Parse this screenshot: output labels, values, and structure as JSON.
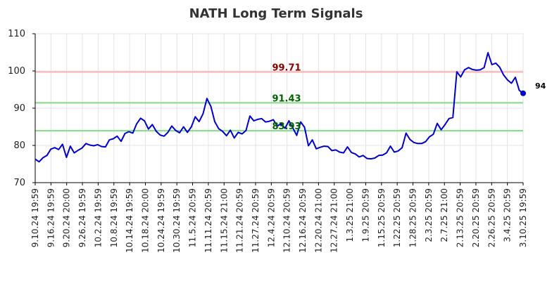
{
  "chart_data": {
    "type": "line",
    "title": "NATH Long Term Signals",
    "xlabel": "",
    "ylabel": "",
    "ylim": [
      70,
      110
    ],
    "yticks": [
      70,
      80,
      90,
      100,
      110
    ],
    "grid": true,
    "xtick_labels": [
      "9.10.24 19:59",
      "9.16.24 19:59",
      "9.20.24 20:00",
      "9.26.24 19:59",
      "10.2.24 19:59",
      "10.8.24 19:59",
      "10.14.24 19:59",
      "10.18.24 20:00",
      "10.24.24 19:59",
      "10.30.24 19:59",
      "11.5.24 20:59",
      "11.11.24 20:59",
      "11.15.24 21:00",
      "11.21.24 20:59",
      "11.27.24 20:59",
      "12.4.24 20:59",
      "12.10.24 20:59",
      "12.16.24 20:59",
      "12.20.24 21:00",
      "12.27.24 21:00",
      "1.3.25 21:00",
      "1.9.25 20:59",
      "1.15.25 20:59",
      "1.22.25 20:59",
      "1.28.25 20:59",
      "2.3.25 20:59",
      "2.7.25 21:00",
      "2.13.25 20:59",
      "2.20.25 20:59",
      "2.26.25 20:59",
      "3.4.25 20:59",
      "3.10.25 19:59"
    ],
    "series": [
      {
        "color": "#0000cc",
        "values": [
          76.3,
          75.6,
          76.7,
          77.3,
          79.0,
          79.4,
          78.9,
          80.3,
          76.8,
          79.8,
          78.0,
          78.7,
          79.3,
          80.5,
          80.1,
          79.9,
          80.2,
          79.7,
          79.6,
          81.5,
          81.8,
          82.5,
          81.1,
          83.2,
          83.7,
          83.3,
          85.8,
          87.3,
          86.6,
          84.4,
          85.6,
          83.8,
          82.8,
          82.5,
          83.5,
          85.2,
          84.0,
          83.4,
          85.0,
          83.5,
          85.0,
          87.7,
          86.4,
          88.5,
          92.6,
          90.5,
          86.4,
          84.5,
          83.8,
          82.6,
          84.1,
          82.0,
          83.5,
          83.1,
          84.0,
          87.9,
          86.6,
          87.0,
          87.2,
          86.3,
          86.5,
          86.9,
          85.2,
          85.8,
          84.6,
          86.6,
          84.7,
          82.7,
          86.3,
          84.9,
          79.9,
          81.5,
          79.1,
          79.5,
          79.8,
          79.7,
          78.6,
          78.8,
          78.2,
          78.0,
          79.6,
          78.1,
          77.7,
          76.9,
          77.3,
          76.5,
          76.4,
          76.6,
          77.3,
          77.4,
          78.0,
          79.8,
          78.2,
          78.5,
          79.4,
          83.3,
          81.6,
          80.8,
          80.5,
          80.5,
          81.0,
          82.3,
          83.0,
          85.9,
          84.2,
          85.6,
          87.2,
          87.5,
          99.8,
          98.4,
          100.3,
          100.9,
          100.4,
          100.2,
          100.3,
          100.9,
          104.9,
          101.7,
          102.1,
          101.0,
          98.9,
          97.6,
          96.7,
          98.3,
          94.8,
          94.0
        ]
      }
    ],
    "levels": [
      {
        "value": 99.71,
        "label": "99.71",
        "line_color": "#ffb3b3",
        "text_color": "#8b0000"
      },
      {
        "value": 91.43,
        "label": "91.43",
        "line_color": "#80dd80",
        "text_color": "#006400"
      },
      {
        "value": 83.93,
        "label": "83.93",
        "line_color": "#80dd80",
        "text_color": "#006400"
      }
    ],
    "last_value_label": "94"
  }
}
